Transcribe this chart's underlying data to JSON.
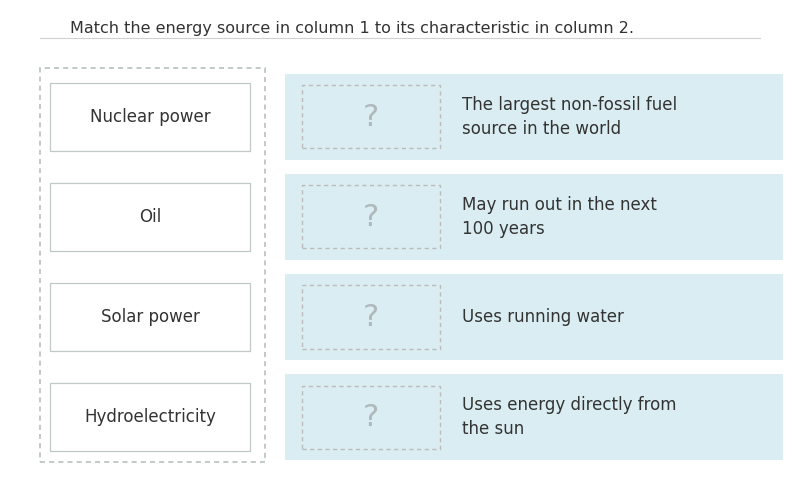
{
  "title": "Match the energy source in column 1 to its characteristic in column 2.",
  "title_fontsize": 11.5,
  "bg_color": "#ffffff",
  "left_column": [
    "Nuclear power",
    "Oil",
    "Solar power",
    "Hydroelectricity"
  ],
  "right_descriptions": [
    "The largest non-fossil fuel\nsource in the world",
    "May run out in the next\n100 years",
    "Uses running water",
    "Uses energy directly from\nthe sun"
  ],
  "question_mark": "?",
  "right_bg_color": "#daedf2",
  "text_color": "#333333",
  "qmark_color": "#b0b8bc",
  "dash_color": "#bbbbbb",
  "left_dash_color": "#b8c0c0",
  "separator_line_color": "#d0d0d0",
  "label_fontsize": 12,
  "desc_fontsize": 12,
  "qmark_fontsize": 22
}
